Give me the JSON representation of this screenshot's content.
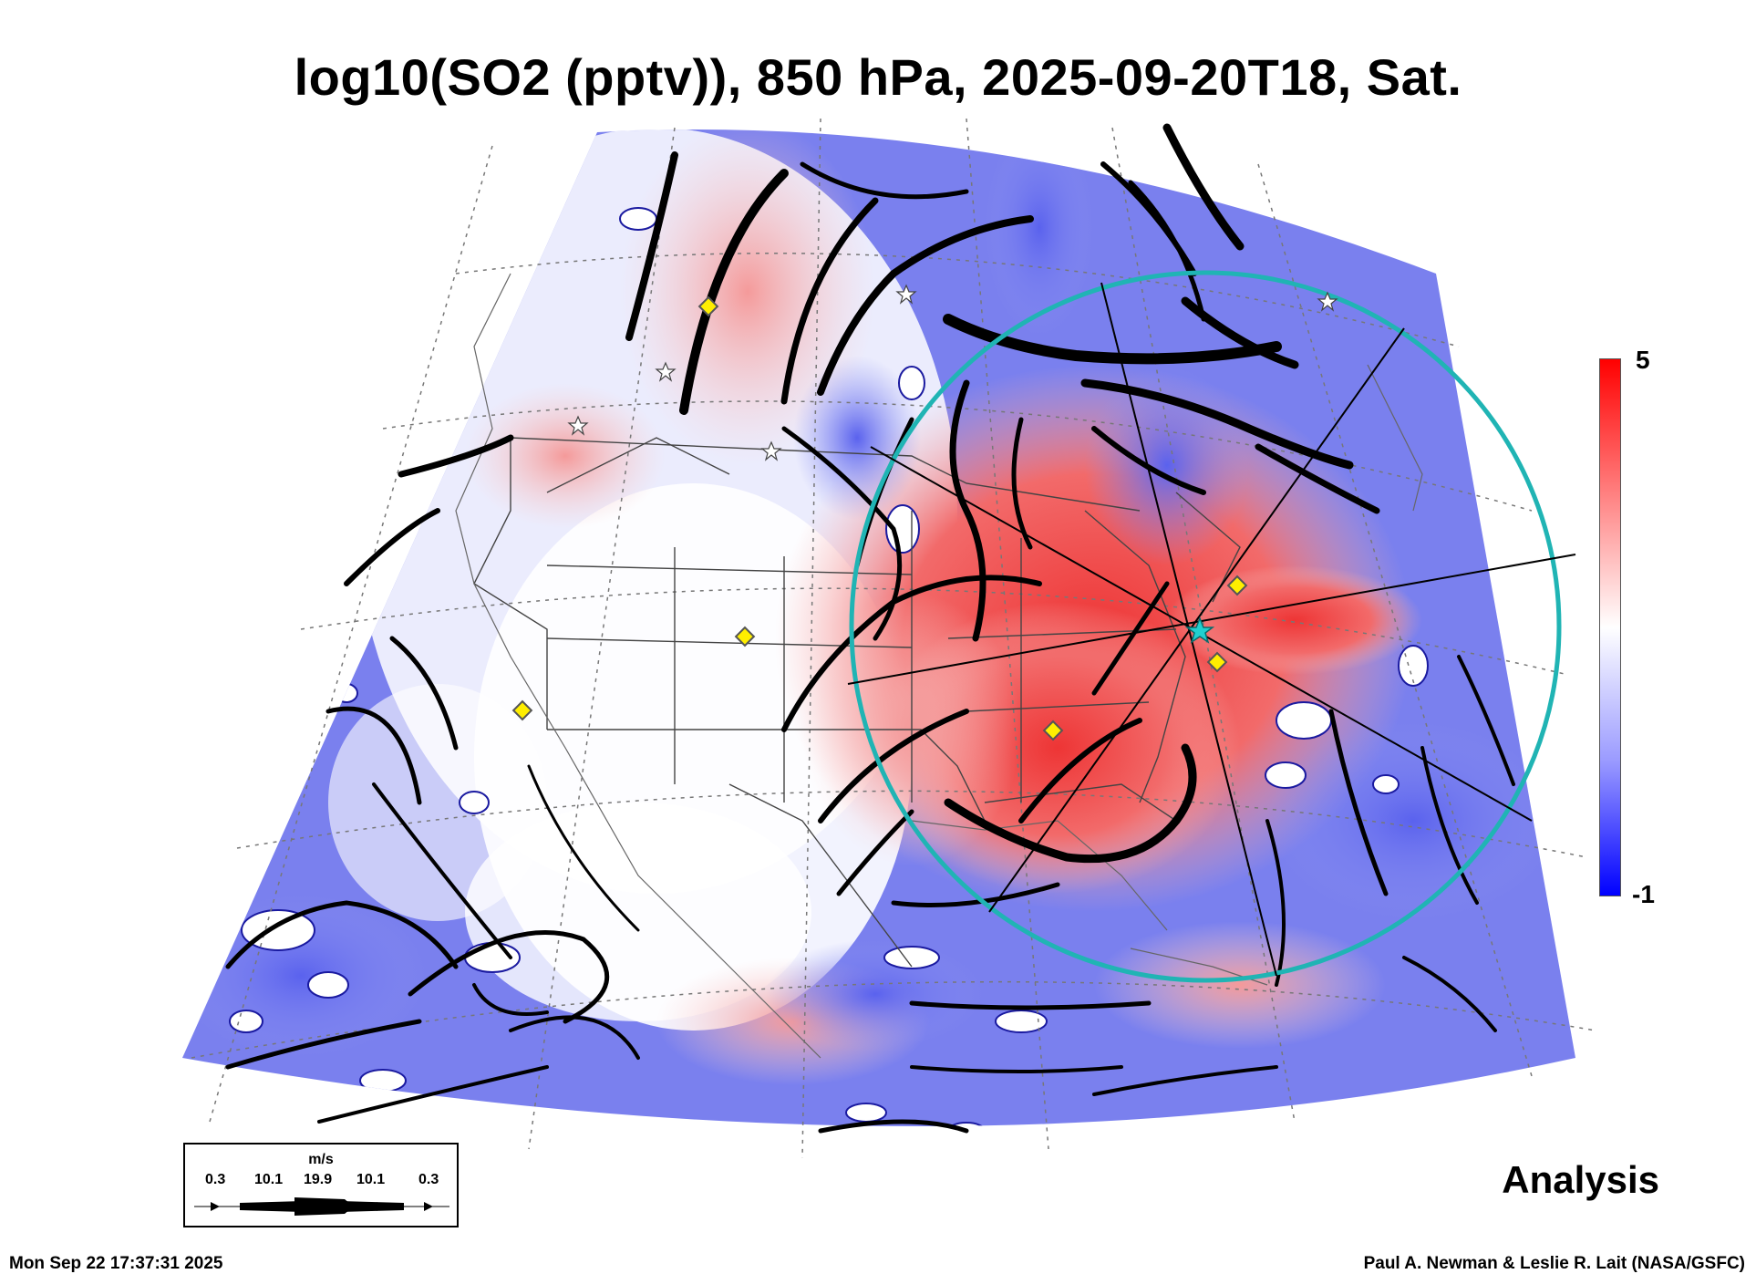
{
  "title": "log10(SO2 (pptv)), 850 hPa, 2025-09-20T18, Sat.",
  "colorbar": {
    "max_label": "5",
    "min_label": "-1",
    "colors": [
      "#ff0000",
      "#ffffff",
      "#0000ff"
    ]
  },
  "analysis_label": "Analysis",
  "wind_legend": {
    "unit": "m/s",
    "labels": [
      "0.3",
      "10.1",
      "19.9",
      "10.1",
      "0.3"
    ]
  },
  "timestamp": "Mon Sep 22 17:37:31 2025",
  "credit": "Paul A. Newman & Leslie R. Lait (NASA/GSFC)",
  "map_colors": {
    "high": "#f05050",
    "mid": "#ffffff",
    "low": "#6670f0",
    "circle": "#20b4b4",
    "marker": "#ffee00"
  }
}
